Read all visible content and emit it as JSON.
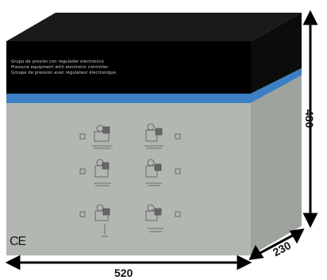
{
  "box": {
    "text_lines": [
      "Grupo de presión con regulador electrónico",
      "Pressure equipment with electronic controller",
      "Groupe de pression avec régulateur électronique"
    ],
    "certification_mark": "CE",
    "dimensions": {
      "width": "520",
      "depth": "230",
      "height": "480"
    },
    "colors": {
      "top": "#1a1a1a",
      "front_band": "#000000",
      "stripe": "#3d7fc4",
      "front_panel": "#b3b7b2",
      "side_panel": "#9fa39e"
    },
    "product_options": [
      {
        "icon": "pump-unit-icon"
      },
      {
        "icon": "pump-unit-icon"
      },
      {
        "icon": "pump-unit-icon"
      },
      {
        "icon": "pump-unit-icon"
      },
      {
        "icon": "pump-unit-icon"
      },
      {
        "icon": "pump-unit-icon"
      }
    ]
  }
}
